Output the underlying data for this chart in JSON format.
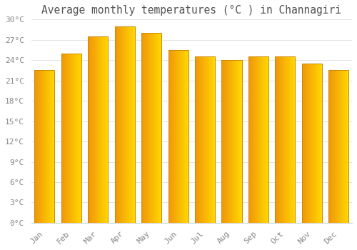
{
  "title": "Average monthly temperatures (°C ) in Channagiri",
  "months": [
    "Jan",
    "Feb",
    "Mar",
    "Apr",
    "May",
    "Jun",
    "Jul",
    "Aug",
    "Sep",
    "Oct",
    "Nov",
    "Dec"
  ],
  "values": [
    22.5,
    25.0,
    27.5,
    29.0,
    28.0,
    25.5,
    24.5,
    24.0,
    24.5,
    24.5,
    23.5,
    22.5
  ],
  "ylim": [
    0,
    30
  ],
  "yticks": [
    0,
    3,
    6,
    9,
    12,
    15,
    18,
    21,
    24,
    27,
    30
  ],
  "ytick_labels": [
    "0°C",
    "3°C",
    "6°C",
    "9°C",
    "12°C",
    "15°C",
    "18°C",
    "21°C",
    "24°C",
    "27°C",
    "30°C"
  ],
  "background_color": "#FFFFFF",
  "grid_color": "#DDDDDD",
  "title_fontsize": 10.5,
  "tick_fontsize": 8,
  "bar_color_left": "#F5A623",
  "bar_color_right": "#FFD700",
  "bar_edge_color": "#CC8800",
  "bar_width": 0.75
}
